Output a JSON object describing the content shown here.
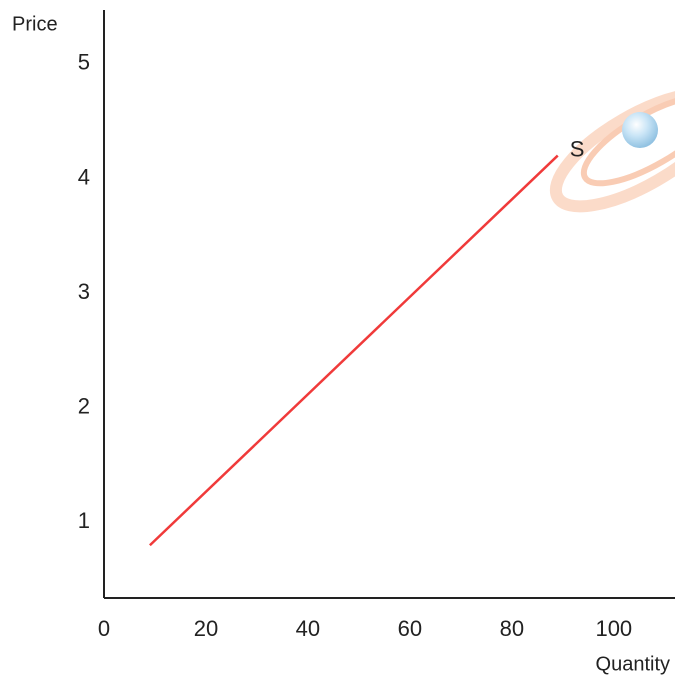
{
  "chart_data": {
    "type": "line",
    "x_label": "Quantity",
    "y_label": "Price",
    "x": [
      9,
      89
    ],
    "series": [
      {
        "name": "S",
        "color": "#f03a3a",
        "values": [
          0.8,
          4.2
        ]
      }
    ],
    "xlim": [
      0,
      112
    ],
    "xticks": [
      0,
      20,
      40,
      60,
      80,
      100
    ],
    "ylim": [
      0.34,
      5.47
    ],
    "yticks": [
      1,
      2,
      3,
      4,
      5
    ],
    "grid": false
  }
}
